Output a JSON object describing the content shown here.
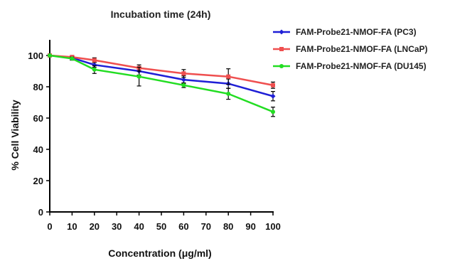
{
  "chart_data": {
    "type": "line",
    "title": "Incubation time (24h)",
    "xlabel": "Concentration (μg/ml)",
    "ylabel": "% Cell Viability",
    "xlim": [
      0,
      100
    ],
    "ylim": [
      0,
      110
    ],
    "xticks": [
      0,
      10,
      20,
      30,
      40,
      50,
      60,
      70,
      80,
      90,
      100
    ],
    "yticks": [
      0,
      20,
      40,
      60,
      80,
      100
    ],
    "grid": false,
    "legend_position": "top-right",
    "x": [
      0,
      10,
      20,
      40,
      60,
      80,
      100
    ],
    "series": [
      {
        "name": "FAM-Probe21-NMOF-FA (PC3)",
        "color": "#1f1fd6",
        "values": [
          100,
          98.5,
          94,
          90,
          84.5,
          82,
          74
        ],
        "errors": [
          0,
          1,
          1.5,
          2.5,
          2.5,
          3,
          3
        ]
      },
      {
        "name": "FAM-Probe21-NMOF-FA (LNCaP)",
        "color": "#ef4f4f",
        "values": [
          100,
          99,
          97,
          92,
          88.5,
          86.5,
          81
        ],
        "errors": [
          0,
          1,
          1.5,
          2,
          2.5,
          5,
          2
        ]
      },
      {
        "name": "FAM-Probe21-NMOF-FA (DU145)",
        "color": "#22dd22",
        "values": [
          100,
          98,
          91,
          86.5,
          81,
          75.5,
          64
        ],
        "errors": [
          0,
          1,
          2.5,
          6,
          1.5,
          3.5,
          3
        ]
      }
    ]
  }
}
